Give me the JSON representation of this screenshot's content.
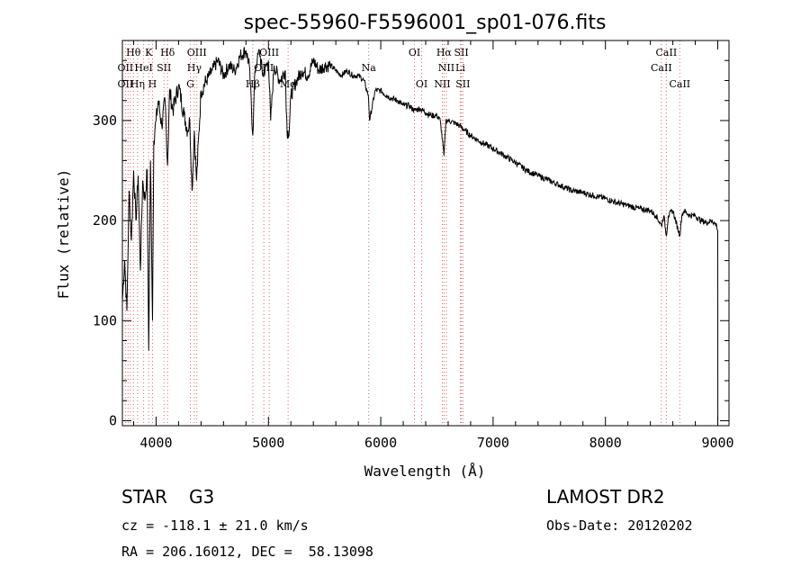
{
  "chart_data": {
    "type": "line",
    "title": "spec-55960-F5596001_sp01-076.fits",
    "xlabel": "Wavelength (Å)",
    "ylabel": "Flux (relative)",
    "xlim": [
      3700,
      9100
    ],
    "ylim": [
      -5,
      380
    ],
    "xticks": [
      4000,
      5000,
      6000,
      7000,
      8000,
      9000
    ],
    "yticks": [
      0,
      100,
      200,
      300
    ],
    "grid": false,
    "series": [
      {
        "name": "flux",
        "x": [
          3700,
          3720,
          3740,
          3760,
          3780,
          3800,
          3820,
          3840,
          3860,
          3880,
          3900,
          3920,
          3934,
          3950,
          3968,
          3980,
          4000,
          4020,
          4050,
          4080,
          4102,
          4120,
          4150,
          4200,
          4250,
          4280,
          4300,
          4320,
          4340,
          4360,
          4400,
          4450,
          4500,
          4550,
          4600,
          4650,
          4700,
          4750,
          4800,
          4830,
          4861,
          4880,
          4900,
          4920,
          4950,
          5000,
          5020,
          5050,
          5100,
          5150,
          5167,
          5173,
          5183,
          5200,
          5250,
          5300,
          5350,
          5400,
          5450,
          5500,
          5550,
          5600,
          5650,
          5700,
          5750,
          5800,
          5850,
          5890,
          5900,
          5950,
          6000,
          6050,
          6100,
          6150,
          6200,
          6250,
          6300,
          6350,
          6400,
          6450,
          6500,
          6530,
          6563,
          6580,
          6600,
          6650,
          6700,
          6750,
          6800,
          6900,
          7000,
          7100,
          7200,
          7300,
          7400,
          7500,
          7600,
          7700,
          7800,
          7900,
          8000,
          8100,
          8200,
          8300,
          8400,
          8450,
          8498,
          8520,
          8542,
          8560,
          8600,
          8662,
          8680,
          8700,
          8750,
          8800,
          8850,
          8900,
          8950,
          8990,
          9000,
          9001
        ],
        "values": [
          120,
          160,
          110,
          230,
          180,
          250,
          200,
          245,
          150,
          240,
          220,
          250,
          70,
          260,
          100,
          280,
          300,
          320,
          295,
          320,
          255,
          330,
          310,
          335,
          305,
          290,
          300,
          230,
          290,
          240,
          330,
          340,
          350,
          360,
          345,
          355,
          350,
          365,
          370,
          355,
          285,
          350,
          360,
          370,
          345,
          360,
          300,
          355,
          340,
          350,
          285,
          290,
          285,
          325,
          340,
          350,
          345,
          360,
          350,
          355,
          355,
          350,
          345,
          350,
          345,
          345,
          340,
          325,
          300,
          330,
          330,
          325,
          322,
          320,
          315,
          315,
          310,
          312,
          308,
          305,
          305,
          300,
          265,
          300,
          300,
          298,
          295,
          290,
          285,
          278,
          272,
          265,
          258,
          250,
          245,
          240,
          235,
          230,
          228,
          225,
          222,
          218,
          215,
          212,
          210,
          205,
          195,
          205,
          185,
          205,
          210,
          185,
          205,
          210,
          205,
          205,
          200,
          198,
          200,
          195,
          190,
          0
        ]
      }
    ],
    "line_labels": [
      {
        "text": "Hθ",
        "wave": 3798,
        "row": 1
      },
      {
        "text": "K",
        "wave": 3934,
        "row": 1
      },
      {
        "text": "Hδ",
        "wave": 4102,
        "row": 1
      },
      {
        "text": "OIII",
        "wave": 4363,
        "row": 1
      },
      {
        "text": "OIII",
        "wave": 5007,
        "row": 1
      },
      {
        "text": "OI",
        "wave": 6300,
        "row": 1
      },
      {
        "text": "Hα",
        "wave": 6563,
        "row": 1
      },
      {
        "text": "SII",
        "wave": 6717,
        "row": 1
      },
      {
        "text": "CaII",
        "wave": 8542,
        "row": 1
      },
      {
        "text": "OII",
        "wave": 3727,
        "row": 2
      },
      {
        "text": "HeI",
        "wave": 3889,
        "row": 2
      },
      {
        "text": "SII",
        "wave": 4070,
        "row": 2
      },
      {
        "text": "Hγ",
        "wave": 4340,
        "row": 2
      },
      {
        "text": "OIII",
        "wave": 4959,
        "row": 2
      },
      {
        "text": "Na",
        "wave": 5893,
        "row": 2
      },
      {
        "text": "NII",
        "wave": 6584,
        "row": 2
      },
      {
        "text": "Li",
        "wave": 6708,
        "row": 2
      },
      {
        "text": "CaII",
        "wave": 8498,
        "row": 2
      },
      {
        "text": "OII",
        "wave": 3727,
        "row": 3
      },
      {
        "text": "Hη",
        "wave": 3835,
        "row": 3
      },
      {
        "text": "H",
        "wave": 3968,
        "row": 3
      },
      {
        "text": "G",
        "wave": 4305,
        "row": 3
      },
      {
        "text": "Hβ",
        "wave": 4861,
        "row": 3
      },
      {
        "text": "Mg",
        "wave": 5175,
        "row": 3
      },
      {
        "text": "OI",
        "wave": 6364,
        "row": 3
      },
      {
        "text": "NII",
        "wave": 6548,
        "row": 3
      },
      {
        "text": "SII",
        "wave": 6731,
        "row": 3
      },
      {
        "text": "CaII",
        "wave": 8662,
        "row": 3
      }
    ],
    "line_marker_waves": [
      3727,
      3750,
      3771,
      3798,
      3835,
      3889,
      3934,
      3968,
      4070,
      4102,
      4305,
      4340,
      4363,
      4861,
      4959,
      5007,
      5175,
      5893,
      6300,
      6364,
      6548,
      6563,
      6584,
      6708,
      6717,
      6731,
      8498,
      8542,
      8662
    ]
  },
  "info": {
    "object_class": "STAR",
    "subclass": "G3",
    "survey": "LAMOST DR2",
    "velocity": "cz = -118.1 ± 21.0 km/s",
    "obs_date": "Obs-Date: 20120202",
    "coords": "RA = 206.16012, DEC =  58.13098"
  }
}
